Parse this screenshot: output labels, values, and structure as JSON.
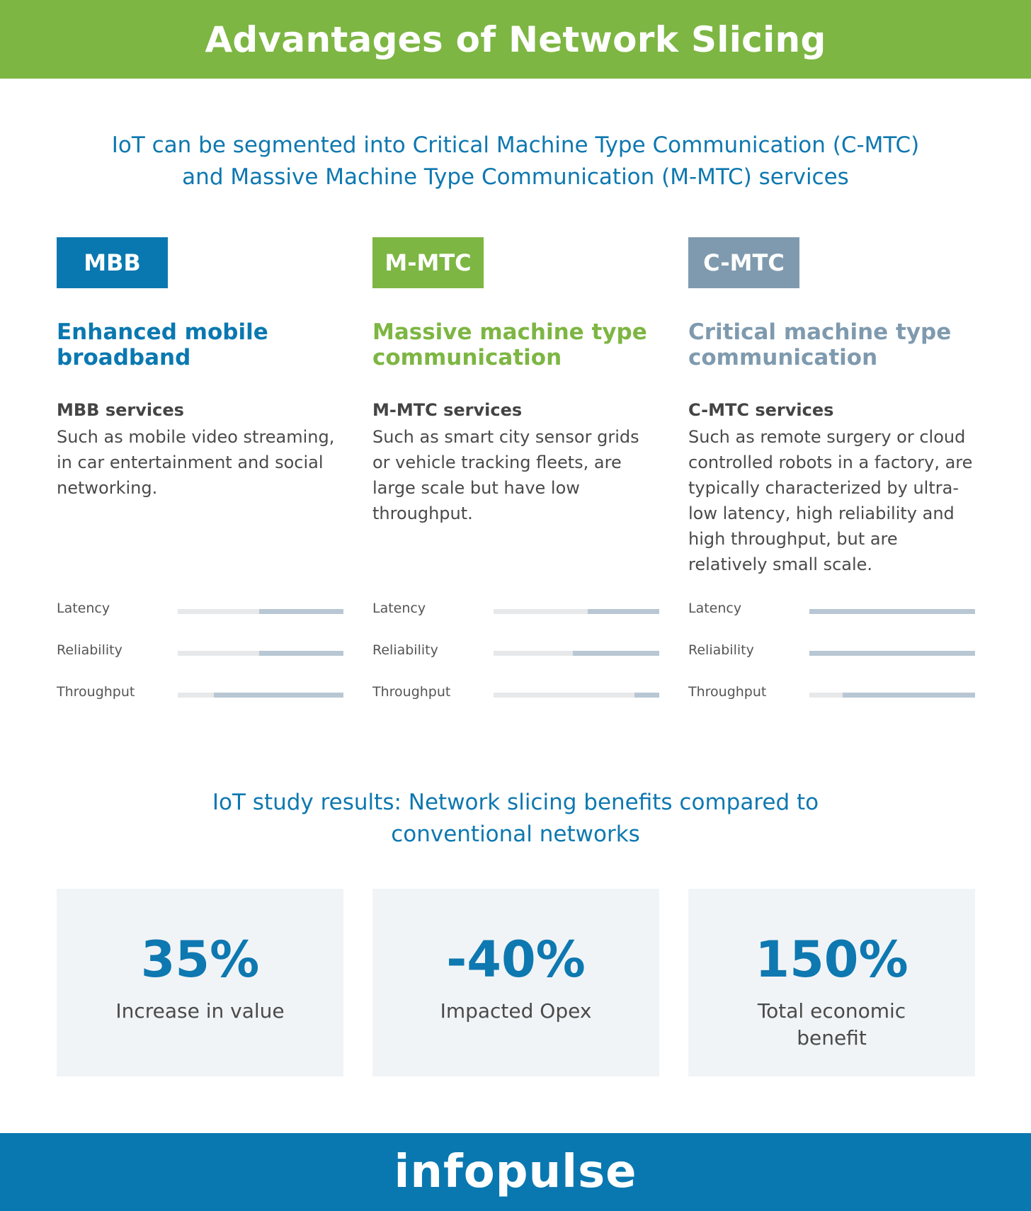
{
  "header": {
    "title": "Advantages of Network Slicing"
  },
  "intro": {
    "line1": "IoT can be segmented into Critical Machine Type Communication (C-MTC)",
    "line2": "and Massive Machine Type Communication (M-MTC) services"
  },
  "categories": [
    {
      "badge": "MBB",
      "color": "#0a78b0",
      "title_line1": "Enhanced mobile",
      "title_line2": "broadband",
      "services_heading": "MBB services",
      "services_desc": "Such as mobile video streaming, in car entertainment and social networking.",
      "metrics": [
        {
          "label": "Latency",
          "level": 0.51
        },
        {
          "label": "Reliability",
          "level": 0.51
        },
        {
          "label": "Throughput",
          "level": 0.78
        }
      ]
    },
    {
      "badge": "M-MTC",
      "color": "#7db643",
      "title_line1": "Massive machine type",
      "title_line2": "communication",
      "services_heading": "M-MTC services",
      "services_desc": "Such as smart city sensor grids or vehicle tracking fleets, are large scale but have low throughput.",
      "metrics": [
        {
          "label": "Latency",
          "level": 0.43
        },
        {
          "label": "Reliability",
          "level": 0.52
        },
        {
          "label": "Throughput",
          "level": 0.15
        }
      ]
    },
    {
      "badge": "C-MTC",
      "color": "#7f9aae",
      "title_line1": "Critical machine type",
      "title_line2": "communication",
      "services_heading": "C-MTC services",
      "services_desc": "Such as remote surgery or cloud controlled robots in a factory, are typically characterized by ultra-low latency, high reliability and high throughput, but are relatively small scale.",
      "metrics": [
        {
          "label": "Latency",
          "level": 1.0
        },
        {
          "label": "Reliability",
          "level": 1.0
        },
        {
          "label": "Throughput",
          "level": 0.8
        }
      ]
    }
  ],
  "results": {
    "title_line1": "IoT study results: Network slicing benefits compared to",
    "title_line2": "conventional networks",
    "stats": [
      {
        "value": "35%",
        "label": "Increase in value"
      },
      {
        "value": "-40%",
        "label": "Impacted Opex"
      },
      {
        "value": "150%",
        "label": "Total economic benefit"
      }
    ]
  },
  "footer": {
    "logo": "infopulse"
  }
}
